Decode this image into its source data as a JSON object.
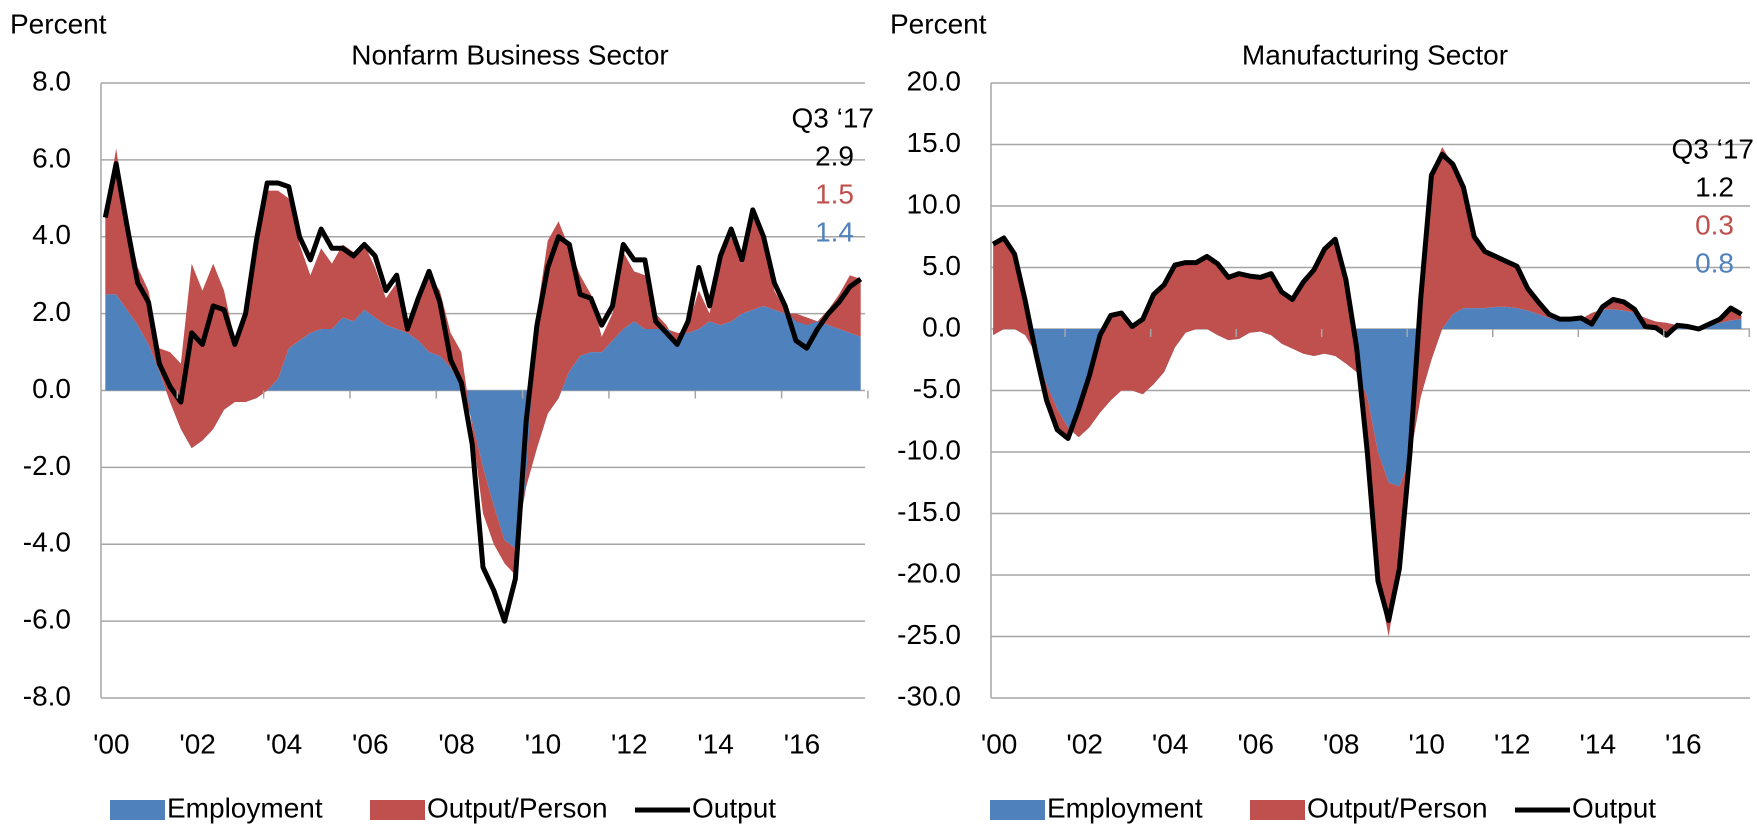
{
  "chart_data": [
    {
      "type": "stacked-area",
      "title": "Nonfarm Business Sector",
      "y_label": "Percent",
      "annotation": "Q3 ‘17",
      "x": [
        2000,
        2000.25,
        2000.5,
        2000.75,
        2001,
        2001.25,
        2001.5,
        2001.75,
        2002,
        2002.25,
        2002.5,
        2002.75,
        2003,
        2003.25,
        2003.5,
        2003.75,
        2004,
        2004.25,
        2004.5,
        2004.75,
        2005,
        2005.25,
        2005.5,
        2005.75,
        2006,
        2006.25,
        2006.5,
        2006.75,
        2007,
        2007.25,
        2007.5,
        2007.75,
        2008,
        2008.25,
        2008.5,
        2008.75,
        2009,
        2009.25,
        2009.5,
        2009.75,
        2010,
        2010.25,
        2010.5,
        2010.75,
        2011,
        2011.25,
        2011.5,
        2011.75,
        2012,
        2012.25,
        2012.5,
        2012.75,
        2013,
        2013.25,
        2013.5,
        2013.75,
        2014,
        2014.25,
        2014.5,
        2014.75,
        2015,
        2015.25,
        2015.5,
        2015.75,
        2016,
        2016.25,
        2016.5,
        2016.75,
        2017,
        2017.25,
        2017.5
      ],
      "series": [
        {
          "name": "Employment",
          "kind": "area",
          "color": "#4f81bd",
          "values": [
            2.5,
            2.5,
            2.1,
            1.7,
            1.2,
            0.5,
            -0.3,
            -1.0,
            -1.5,
            -1.3,
            -1.0,
            -0.5,
            -0.3,
            -0.3,
            -0.2,
            0.0,
            0.3,
            1.1,
            1.3,
            1.5,
            1.6,
            1.6,
            1.9,
            1.8,
            2.1,
            1.9,
            1.7,
            1.6,
            1.5,
            1.3,
            1.0,
            0.9,
            0.6,
            0.1,
            -0.8,
            -2.0,
            -3.0,
            -3.9,
            -4.1,
            -2.5,
            -1.5,
            -0.6,
            -0.2,
            0.5,
            0.9,
            1.0,
            1.0,
            1.3,
            1.6,
            1.8,
            1.6,
            1.6,
            1.6,
            1.5,
            1.5,
            1.6,
            1.8,
            1.7,
            1.8,
            2.0,
            2.1,
            2.2,
            2.1,
            2.0,
            2.0,
            1.9,
            1.8,
            1.7,
            1.6,
            1.5,
            1.4
          ]
        },
        {
          "name": "Output/Person",
          "kind": "area",
          "color": "#c0504d",
          "values": [
            2.0,
            3.8,
            2.4,
            1.5,
            1.4,
            0.6,
            1.3,
            1.7,
            4.8,
            3.9,
            4.3,
            3.1,
            1.6,
            2.3,
            4.1,
            5.2,
            4.9,
            3.9,
            2.5,
            1.5,
            2.1,
            1.7,
            1.9,
            1.8,
            1.7,
            1.3,
            0.7,
            1.2,
            0.2,
            1.2,
            2.0,
            1.7,
            0.9,
            0.9,
            -0.2,
            -1.2,
            -1.0,
            -0.6,
            -0.7,
            0.3,
            3.5,
            4.5,
            4.6,
            3.2,
            2.1,
            1.5,
            0.4,
            0.7,
            2.0,
            1.3,
            1.4,
            0.4,
            0.1,
            -0.3,
            0.2,
            1.0,
            0.2,
            1.7,
            2.2,
            1.3,
            2.4,
            1.8,
            0.5,
            0.1,
            -0.2,
            -0.2,
            0.0,
            0.4,
            0.9,
            1.5,
            1.5
          ]
        },
        {
          "name": "Output",
          "kind": "line",
          "color": "#000000",
          "values": [
            4.5,
            5.9,
            4.3,
            2.8,
            2.3,
            0.7,
            0.1,
            -0.3,
            1.5,
            1.2,
            2.2,
            2.1,
            1.2,
            2.0,
            3.9,
            5.4,
            5.4,
            5.3,
            4.0,
            3.4,
            4.2,
            3.7,
            3.7,
            3.5,
            3.8,
            3.5,
            2.6,
            3.0,
            1.6,
            2.4,
            3.1,
            2.3,
            0.8,
            0.2,
            -1.4,
            -4.6,
            -5.2,
            -6.0,
            -4.9,
            -0.8,
            1.7,
            3.2,
            4.0,
            3.8,
            2.5,
            2.4,
            1.7,
            2.2,
            3.8,
            3.4,
            3.4,
            1.8,
            1.5,
            1.2,
            1.8,
            3.2,
            2.2,
            3.5,
            4.2,
            3.4,
            4.7,
            4.0,
            2.8,
            2.2,
            1.3,
            1.1,
            1.6,
            2.0,
            2.3,
            2.7,
            2.9
          ]
        }
      ],
      "xlim": [
        1999.9,
        2017.6
      ],
      "xticks": [
        {
          "value": 2000,
          "label": "'00"
        },
        {
          "value": 2002,
          "label": "'02"
        },
        {
          "value": 2004,
          "label": "'04"
        },
        {
          "value": 2006,
          "label": "'06"
        },
        {
          "value": 2008,
          "label": "'08"
        },
        {
          "value": 2010,
          "label": "'10"
        },
        {
          "value": 2012,
          "label": "'12"
        },
        {
          "value": 2014,
          "label": "'14"
        },
        {
          "value": 2016,
          "label": "'16"
        }
      ],
      "ylim": [
        -8,
        8
      ],
      "yticks": [
        {
          "value": 8,
          "label": "8.0"
        },
        {
          "value": 6,
          "label": "6.0"
        },
        {
          "value": 4,
          "label": "4.0"
        },
        {
          "value": 2,
          "label": "2.0"
        },
        {
          "value": 0,
          "label": "0.0"
        },
        {
          "value": -2,
          "label": "-2.0"
        },
        {
          "value": -4,
          "label": "-4.0"
        },
        {
          "value": -6,
          "label": "-6.0"
        },
        {
          "value": -8,
          "label": "-8.0"
        }
      ],
      "grid": true,
      "legend": "bottom"
    },
    {
      "type": "stacked-area",
      "title": "Manufacturing Sector",
      "y_label": "Percent",
      "annotation": "Q3 ‘17",
      "x": [
        2000,
        2000.25,
        2000.5,
        2000.75,
        2001,
        2001.25,
        2001.5,
        2001.75,
        2002,
        2002.25,
        2002.5,
        2002.75,
        2003,
        2003.25,
        2003.5,
        2003.75,
        2004,
        2004.25,
        2004.5,
        2004.75,
        2005,
        2005.25,
        2005.5,
        2005.75,
        2006,
        2006.25,
        2006.5,
        2006.75,
        2007,
        2007.25,
        2007.5,
        2007.75,
        2008,
        2008.25,
        2008.5,
        2008.75,
        2009,
        2009.25,
        2009.5,
        2009.75,
        2010,
        2010.25,
        2010.5,
        2010.75,
        2011,
        2011.25,
        2011.5,
        2011.75,
        2012,
        2012.25,
        2012.5,
        2012.75,
        2013,
        2013.25,
        2013.5,
        2013.75,
        2014,
        2014.25,
        2014.5,
        2014.75,
        2015,
        2015.25,
        2015.5,
        2015.75,
        2016,
        2016.25,
        2016.5,
        2016.75,
        2017,
        2017.25,
        2017.5
      ],
      "series": [
        {
          "name": "Employment",
          "kind": "area",
          "color": "#4f81bd",
          "values": [
            -0.5,
            0,
            0,
            -0.5,
            -2.0,
            -4.5,
            -6.5,
            -8.0,
            -8.8,
            -8.0,
            -6.8,
            -5.8,
            -5.0,
            -5.0,
            -5.3,
            -4.5,
            -3.5,
            -1.5,
            -0.3,
            0,
            0,
            -0.5,
            -0.9,
            -0.8,
            -0.3,
            -0.2,
            -0.5,
            -1.2,
            -1.6,
            -2.0,
            -2.2,
            -2.0,
            -2.2,
            -2.8,
            -3.5,
            -5.5,
            -10,
            -12.5,
            -12.8,
            -10.5,
            -5.5,
            -2.5,
            0,
            1.2,
            1.7,
            1.7,
            1.7,
            1.8,
            1.8,
            1.7,
            1.5,
            1.2,
            0.9,
            0.7,
            0.7,
            0.8,
            1.3,
            1.6,
            1.6,
            1.5,
            1.3,
            0.9,
            0.6,
            0.5,
            0.3,
            0.1,
            0.2,
            0.3,
            0.5,
            0.7,
            0.8
          ]
        },
        {
          "name": "Output/Person",
          "kind": "area",
          "color": "#c0504d",
          "values": [
            7.4,
            7.4,
            6.1,
            2.8,
            0.0,
            -1.3,
            -1.7,
            -0.9,
            2.3,
            4.2,
            6.3,
            6.9,
            6.3,
            5.2,
            6.1,
            7.3,
            7.1,
            6.7,
            5.7,
            5.4,
            5.9,
            5.8,
            5.1,
            5.3,
            4.6,
            4.4,
            5.0,
            4.2,
            4.0,
            5.8,
            7.0,
            8.5,
            9.5,
            6.8,
            2.0,
            -4.5,
            -10.5,
            -12.5,
            -6.7,
            0.5,
            8.0,
            15.0,
            14.8,
            12.2,
            9.8,
            5.8,
            4.6,
            4.1,
            3.7,
            3.4,
            1.8,
            1.0,
            0.3,
            0.1,
            0.1,
            0.1,
            -0.9,
            0.2,
            0.8,
            0.7,
            0.3,
            -0.7,
            -0.5,
            -1.0,
            0.0,
            0.1,
            -0.2,
            0.1,
            0.3,
            1.0,
            0.3
          ]
        },
        {
          "name": "Output",
          "kind": "line",
          "color": "#000000",
          "values": [
            6.9,
            7.4,
            6.1,
            2.3,
            -2.0,
            -5.8,
            -8.2,
            -8.9,
            -6.5,
            -3.8,
            -0.5,
            1.1,
            1.3,
            0.2,
            0.8,
            2.8,
            3.6,
            5.2,
            5.4,
            5.4,
            5.9,
            5.3,
            4.2,
            4.5,
            4.3,
            4.2,
            4.5,
            3.0,
            2.4,
            3.8,
            4.8,
            6.5,
            7.3,
            4.0,
            -1.5,
            -10,
            -20.5,
            -23.7,
            -19.5,
            -10,
            2.5,
            12.5,
            14.2,
            13.4,
            11.5,
            7.5,
            6.3,
            5.9,
            5.5,
            5.1,
            3.3,
            2.2,
            1.2,
            0.8,
            0.8,
            0.9,
            0.4,
            1.8,
            2.4,
            2.2,
            1.6,
            0.2,
            0.1,
            -0.5,
            0.3,
            0.2,
            0.0,
            0.4,
            0.8,
            1.7,
            1.2
          ]
        }
      ],
      "xlim": [
        1999.95,
        2017.7
      ],
      "xticks": [
        {
          "value": 2000,
          "label": "'00"
        },
        {
          "value": 2002,
          "label": "'02"
        },
        {
          "value": 2004,
          "label": "'04"
        },
        {
          "value": 2006,
          "label": "'06"
        },
        {
          "value": 2008,
          "label": "'08"
        },
        {
          "value": 2010,
          "label": "'10"
        },
        {
          "value": 2012,
          "label": "'12"
        },
        {
          "value": 2014,
          "label": "'14"
        },
        {
          "value": 2016,
          "label": "'16"
        }
      ],
      "ylim": [
        -30,
        20
      ],
      "yticks": [
        {
          "value": 20,
          "label": "20.0"
        },
        {
          "value": 15,
          "label": "15.0"
        },
        {
          "value": 10,
          "label": "10.0"
        },
        {
          "value": 5,
          "label": "5.0"
        },
        {
          "value": 0,
          "label": "0.0"
        },
        {
          "value": -5,
          "label": "-5.0"
        },
        {
          "value": -10,
          "label": "-10.0"
        },
        {
          "value": -15,
          "label": "-15.0"
        },
        {
          "value": -20,
          "label": "-20.0"
        },
        {
          "value": -25,
          "label": "-25.0"
        },
        {
          "value": -30,
          "label": "-30.0"
        }
      ],
      "grid": true,
      "legend": "bottom"
    }
  ]
}
